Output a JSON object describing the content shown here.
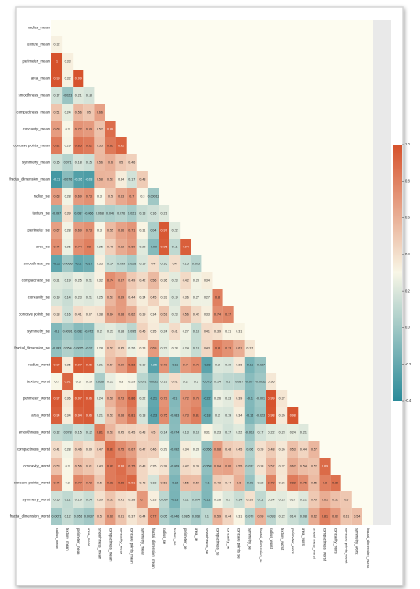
{
  "chart_data": {
    "type": "heatmap",
    "row_labels": [
      "radius_mean",
      "texture_mean",
      "perimeter_mean",
      "area_mean",
      "smoothness_mean",
      "compactness_mean",
      "concavity_mean",
      "concave points_mean",
      "symmetry_mean",
      "fractal_dimension_mean",
      "radius_se",
      "texture_se",
      "perimeter_se",
      "area_se",
      "smoothness_se",
      "compactness_se",
      "concavity_se",
      "concave points_se",
      "symmetry_se",
      "fractal_dimension_se",
      "radius_worst",
      "texture_worst",
      "perimeter_worst",
      "area_worst",
      "smoothness_worst",
      "compactness_worst",
      "concavity_worst",
      "concave points_worst",
      "symmetry_worst",
      "fractal_dimension_worst"
    ],
    "col_labels": [
      "radius_mean",
      "texture_mean",
      "perimeter_mean",
      "area_mean",
      "smoothness_mean",
      "compactness_mean",
      "concavity_mean",
      "concave points_mean",
      "symmetry_mean",
      "fractal_dimension_mean",
      "radius_se",
      "texture_se",
      "perimeter_se",
      "area_se",
      "smoothness_se",
      "compactness_se",
      "concavity_se",
      "concave points_se",
      "symmetry_se",
      "fractal_dimension_se",
      "radius_worst",
      "texture_worst",
      "perimeter_worst",
      "area_worst",
      "smoothness_worst",
      "compactness_worst",
      "concavity_worst",
      "concave points_worst",
      "symmetry_worst",
      "fractal_dimension_worst"
    ],
    "values": [
      [],
      [
        0.32
      ],
      [
        1,
        0.33
      ],
      [
        0.99,
        0.32,
        0.99
      ],
      [
        0.17,
        -0.023,
        0.21,
        0.18
      ],
      [
        0.51,
        0.24,
        0.56,
        0.5,
        0.66
      ],
      [
        0.68,
        0.3,
        0.72,
        0.69,
        0.52,
        0.88
      ],
      [
        0.82,
        0.29,
        0.85,
        0.82,
        0.55,
        0.83,
        0.92
      ],
      [
        0.15,
        0.071,
        0.18,
        0.15,
        0.56,
        0.6,
        0.5,
        0.46
      ],
      [
        -0.31,
        -0.076,
        -0.26,
        -0.28,
        0.58,
        0.57,
        0.34,
        0.17,
        0.48
      ],
      [
        0.68,
        0.28,
        0.69,
        0.73,
        0.3,
        0.5,
        0.63,
        0.7,
        0.3,
        0.00011
      ],
      [
        -0.097,
        0.39,
        -0.087,
        -0.066,
        0.068,
        0.046,
        0.076,
        0.021,
        0.13,
        0.16,
        0.21
      ],
      [
        0.67,
        0.28,
        0.69,
        0.73,
        0.3,
        0.55,
        0.66,
        0.71,
        0.31,
        0.04,
        0.97,
        0.22
      ],
      [
        0.74,
        0.26,
        0.74,
        0.8,
        0.25,
        0.46,
        0.62,
        0.69,
        0.22,
        -0.09,
        0.95,
        0.11,
        0.94
      ],
      [
        -0.22,
        0.0066,
        -0.2,
        -0.17,
        0.33,
        0.14,
        0.099,
        0.028,
        0.19,
        0.4,
        0.16,
        0.4,
        0.15,
        0.075
      ],
      [
        0.21,
        0.19,
        0.25,
        0.21,
        0.32,
        0.74,
        0.67,
        0.49,
        0.42,
        0.56,
        0.36,
        0.23,
        0.42,
        0.28,
        0.34
      ],
      [
        0.19,
        0.14,
        0.23,
        0.21,
        0.25,
        0.57,
        0.69,
        0.44,
        0.34,
        0.45,
        0.33,
        0.19,
        0.36,
        0.27,
        0.27,
        0.8
      ],
      [
        0.38,
        0.16,
        0.41,
        0.37,
        0.38,
        0.64,
        0.68,
        0.62,
        0.39,
        0.34,
        0.51,
        0.23,
        0.56,
        0.42,
        0.33,
        0.74,
        0.77
      ],
      [
        -0.1,
        0.0091,
        -0.082,
        -0.072,
        0.2,
        0.23,
        0.18,
        0.095,
        0.45,
        0.35,
        0.24,
        0.41,
        0.27,
        0.13,
        0.41,
        0.39,
        0.31,
        0.31
      ],
      [
        -0.043,
        0.054,
        -0.0055,
        -0.02,
        0.28,
        0.51,
        0.45,
        0.26,
        0.33,
        0.69,
        0.23,
        0.28,
        0.24,
        0.13,
        0.43,
        0.8,
        0.73,
        0.61,
        0.37
      ],
      [
        0.97,
        0.35,
        0.97,
        0.96,
        0.21,
        0.54,
        0.69,
        0.83,
        0.19,
        -0.25,
        0.72,
        -0.11,
        0.7,
        0.76,
        -0.23,
        0.2,
        0.19,
        0.36,
        -0.13,
        -0.037
      ],
      [
        0.3,
        0.91,
        0.3,
        0.29,
        0.036,
        0.25,
        0.3,
        0.29,
        0.091,
        -0.051,
        0.19,
        0.41,
        0.2,
        0.2,
        -0.075,
        0.14,
        0.1,
        0.087,
        -0.077,
        -0.0032,
        0.36
      ],
      [
        0.97,
        0.36,
        0.97,
        0.96,
        0.24,
        0.59,
        0.73,
        0.86,
        0.22,
        -0.21,
        0.72,
        -0.1,
        0.72,
        0.76,
        -0.22,
        0.26,
        0.23,
        0.39,
        -0.1,
        -0.001,
        0.99,
        0.37
      ],
      [
        0.94,
        0.34,
        0.94,
        0.96,
        0.21,
        0.51,
        0.68,
        0.81,
        0.18,
        -0.23,
        0.75,
        -0.083,
        0.73,
        0.81,
        -0.18,
        0.2,
        0.19,
        0.34,
        -0.11,
        -0.023,
        0.98,
        0.35,
        0.98
      ],
      [
        0.12,
        0.078,
        0.15,
        0.12,
        0.81,
        0.57,
        0.45,
        0.45,
        0.43,
        0.5,
        0.14,
        -0.074,
        0.13,
        0.13,
        0.31,
        0.23,
        0.17,
        0.22,
        -0.013,
        0.17,
        0.22,
        0.23,
        0.24,
        0.21
      ],
      [
        0.41,
        0.28,
        0.46,
        0.39,
        0.47,
        0.87,
        0.75,
        0.67,
        0.47,
        0.46,
        0.29,
        -0.092,
        0.34,
        0.28,
        -0.056,
        0.68,
        0.48,
        0.45,
        0.06,
        0.39,
        0.48,
        0.36,
        0.53,
        0.44,
        0.57
      ],
      [
        0.53,
        0.3,
        0.56,
        0.51,
        0.43,
        0.82,
        0.88,
        0.75,
        0.43,
        0.35,
        0.38,
        -0.069,
        0.42,
        0.39,
        -0.058,
        0.64,
        0.66,
        0.55,
        0.037,
        0.38,
        0.57,
        0.37,
        0.62,
        0.54,
        0.52,
        0.89
      ],
      [
        0.74,
        0.3,
        0.77,
        0.72,
        0.5,
        0.82,
        0.86,
        0.91,
        0.43,
        0.18,
        0.53,
        -0.12,
        0.55,
        0.54,
        -0.1,
        0.48,
        0.44,
        0.6,
        -0.03,
        0.22,
        0.79,
        0.36,
        0.82,
        0.75,
        0.55,
        0.8,
        0.86
      ],
      [
        0.16,
        0.11,
        0.19,
        0.14,
        0.39,
        0.51,
        0.41,
        0.38,
        0.7,
        0.33,
        0.095,
        -0.13,
        0.11,
        0.074,
        -0.11,
        0.28,
        0.2,
        0.14,
        0.39,
        0.11,
        0.24,
        0.23,
        0.27,
        0.21,
        0.49,
        0.61,
        0.53,
        0.5
      ],
      [
        0.0071,
        0.12,
        0.051,
        0.0037,
        0.5,
        0.69,
        0.51,
        0.37,
        0.44,
        0.77,
        0.05,
        -0.046,
        0.085,
        0.018,
        0.1,
        0.59,
        0.44,
        0.31,
        0.078,
        0.59,
        0.093,
        0.22,
        0.14,
        0.08,
        0.62,
        0.81,
        0.69,
        0.51,
        0.54
      ]
    ],
    "colors": [
      "#2a8a99",
      "#f8f6e6",
      "#d6512b"
    ],
    "colorbar_lim": [
      -0.4,
      1
    ],
    "colorbar_ticks": [
      {
        "value": -0.4,
        "label": "-0.4"
      },
      {
        "value": -0.2,
        "label": "-0.2"
      },
      {
        "value": 0,
        "label": "0.0"
      },
      {
        "value": 0.2,
        "label": "0.2"
      },
      {
        "value": 0.4,
        "label": "0.4"
      },
      {
        "value": 0.6,
        "label": "0.6"
      },
      {
        "value": 0.8,
        "label": "0.8"
      },
      {
        "value": 1,
        "label": "1.0"
      }
    ]
  }
}
